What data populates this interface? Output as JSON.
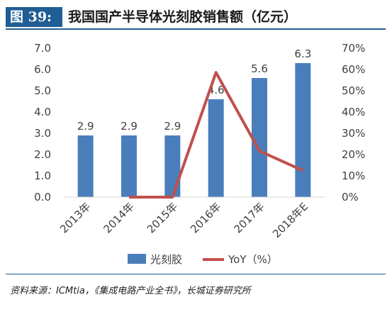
{
  "title": {
    "badge": "图 39:",
    "text": "我国国产半导体光刻胶销售额（亿元）"
  },
  "source": "资料来源：ICMtia，《集成电路产业全书》，长城证券研究所",
  "colors": {
    "bar": "#4a7ebb",
    "line": "#c0504d",
    "accent": "#1f5d94"
  },
  "chart_data": {
    "type": "bar",
    "categories": [
      "2013年",
      "2014年",
      "2015年",
      "2016年",
      "2017年",
      "2018年E"
    ],
    "series": [
      {
        "name": "光刻胶",
        "type": "bar",
        "axis": "left",
        "values": [
          2.9,
          2.9,
          2.9,
          4.6,
          5.6,
          6.3
        ],
        "labels": [
          "2.9",
          "2.9",
          "2.9",
          "4.6",
          "5.6",
          "6.3"
        ]
      },
      {
        "name": "YoY（%）",
        "type": "line",
        "axis": "right",
        "values": [
          null,
          0,
          0,
          58.6,
          21.7,
          12.5
        ]
      }
    ],
    "y_left": {
      "ylim": [
        0,
        7
      ],
      "ticks": [
        "0.0",
        "1.0",
        "2.0",
        "3.0",
        "4.0",
        "5.0",
        "6.0",
        "7.0"
      ]
    },
    "y_right": {
      "ylim": [
        0,
        70
      ],
      "ticks": [
        "0%",
        "10%",
        "20%",
        "30%",
        "40%",
        "50%",
        "60%",
        "70%"
      ]
    },
    "grid": false,
    "legend": "bottom"
  }
}
